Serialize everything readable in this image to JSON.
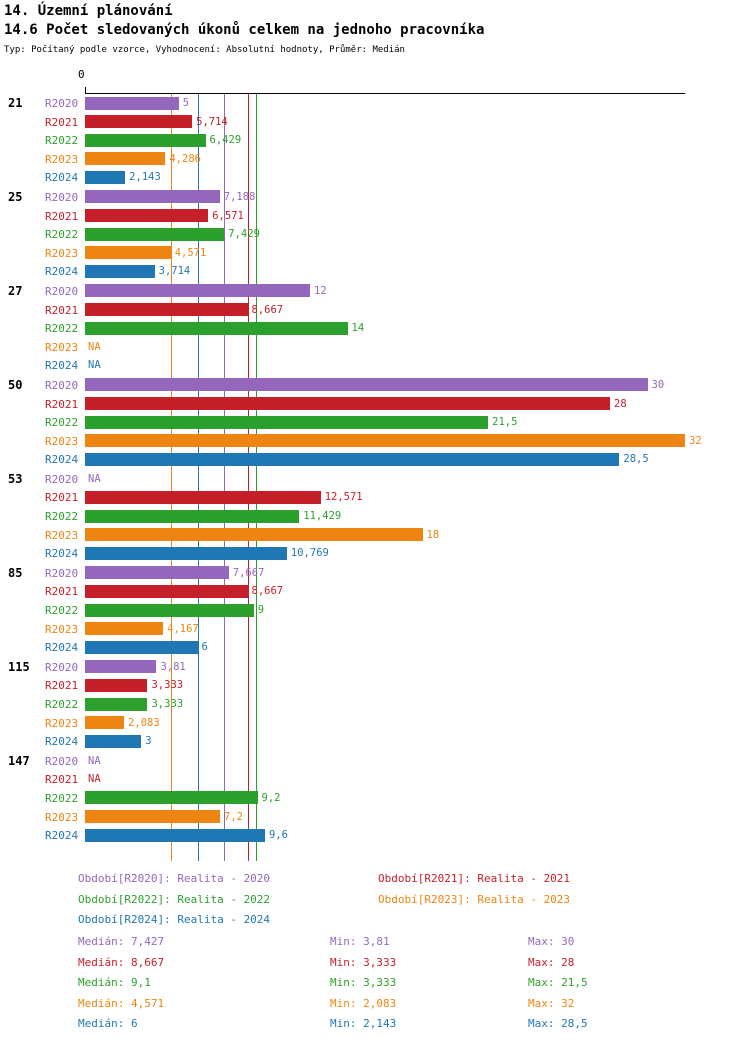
{
  "page": {
    "title_line1": "14. Územní plánování",
    "title_line2": "14.6 Počet sledovaných úkonů celkem na jednoho pracovníka",
    "subtitle": "Typ: Počítaný podle vzorce, Vyhodnocení: Absolutní hodnoty, Průměr: Medián"
  },
  "chart_data": {
    "type": "bar",
    "orientation": "horizontal",
    "value_axis": {
      "min": 0,
      "max": 32,
      "origin_tick_label": "0"
    },
    "na_label": "NA",
    "series": [
      {
        "name": "R2020",
        "color": "#9467bd",
        "median": 7.427
      },
      {
        "name": "R2021",
        "color": "#c5202a",
        "median": 8.667
      },
      {
        "name": "R2022",
        "color": "#2ca02c",
        "median": 9.1
      },
      {
        "name": "R2023",
        "color": "#ee8512",
        "median": 4.571
      },
      {
        "name": "R2024",
        "color": "#1f77b4",
        "median": 6
      }
    ],
    "groups": [
      {
        "label": "21",
        "values": [
          5,
          5.714,
          6.429,
          4.286,
          2.143
        ],
        "labels": [
          "5",
          "5,714",
          "6,429",
          "4,286",
          "2,143"
        ]
      },
      {
        "label": "25",
        "values": [
          7.188,
          6.571,
          7.429,
          4.571,
          3.714
        ],
        "labels": [
          "7,188",
          "6,571",
          "7,429",
          "4,571",
          "3,714"
        ]
      },
      {
        "label": "27",
        "values": [
          12,
          8.667,
          14,
          null,
          null
        ],
        "labels": [
          "12",
          "8,667",
          "14",
          "NA",
          "NA"
        ]
      },
      {
        "label": "50",
        "values": [
          30,
          28,
          21.5,
          32,
          28.5
        ],
        "labels": [
          "30",
          "28",
          "21,5",
          "32",
          "28,5"
        ]
      },
      {
        "label": "53",
        "values": [
          null,
          12.571,
          11.429,
          18,
          10.769
        ],
        "labels": [
          "NA",
          "12,571",
          "11,429",
          "18",
          "10,769"
        ]
      },
      {
        "label": "85",
        "values": [
          7.667,
          8.667,
          9,
          4.167,
          6
        ],
        "labels": [
          "7,667",
          "8,667",
          "9",
          "4,167",
          "6"
        ]
      },
      {
        "label": "115",
        "values": [
          3.81,
          3.333,
          3.333,
          2.083,
          3
        ],
        "labels": [
          "3,81",
          "3,333",
          "3,333",
          "2,083",
          "3"
        ]
      },
      {
        "label": "147",
        "values": [
          null,
          null,
          9.2,
          7.2,
          9.6
        ],
        "labels": [
          "NA",
          "NA",
          "9,2",
          "7,2",
          "9,6"
        ]
      }
    ],
    "legend": [
      "Období[R2020]: Realita - 2020",
      "Období[R2021]: Realita - 2021",
      "Období[R2022]: Realita - 2022",
      "Období[R2023]: Realita - 2023",
      "Období[R2024]: Realita - 2024"
    ],
    "stats": [
      {
        "median": "Medián: 7,427",
        "min": "Min: 3,81",
        "max": "Max: 30"
      },
      {
        "median": "Medián: 8,667",
        "min": "Min: 3,333",
        "max": "Max: 28"
      },
      {
        "median": "Medián: 9,1",
        "min": "Min: 3,333",
        "max": "Max: 21,5"
      },
      {
        "median": "Medián: 4,571",
        "min": "Min: 2,083",
        "max": "Max: 32"
      },
      {
        "median": "Medián: 6",
        "min": "Min: 2,143",
        "max": "Max: 28,5"
      }
    ]
  }
}
